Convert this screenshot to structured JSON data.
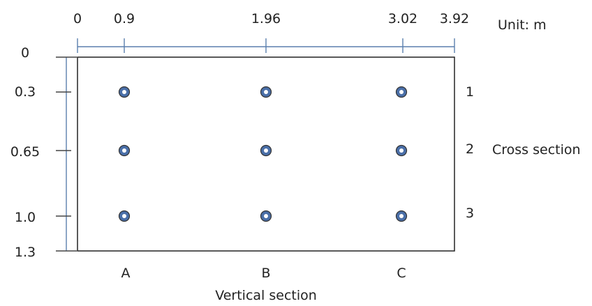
{
  "top_ticks": [
    "0",
    "0.9",
    "1.96",
    "3.02",
    "3.92"
  ],
  "unit_label": "Unit: m",
  "left_ticks": [
    "0",
    "0.3",
    "0.65",
    "1.0",
    "1.3"
  ],
  "columns": [
    "A",
    "B",
    "C"
  ],
  "rows": [
    "1",
    "2",
    "3"
  ],
  "cross_section_label": "Cross section",
  "vertical_section_label": "Vertical section",
  "colors": {
    "dimension_line": "#5b7fae",
    "point_fill": "#4a6fa8",
    "outline": "#333333"
  }
}
